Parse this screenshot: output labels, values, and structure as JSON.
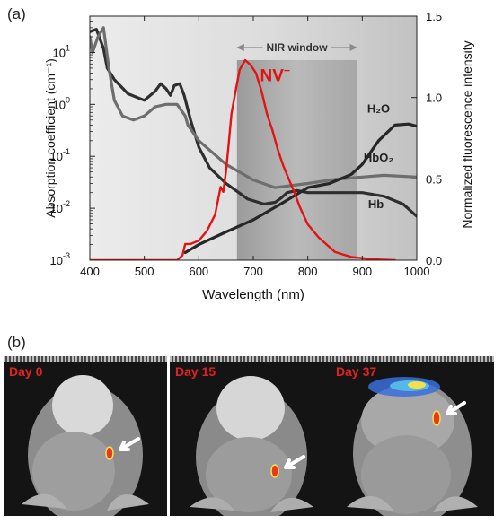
{
  "figure": {
    "panel_a_label": "(a)",
    "panel_b_label": "(b)"
  },
  "chart_data": {
    "type": "line",
    "xlabel": "Wavelength (nm)",
    "ylabel_left": "Absorption coefficient (cm⁻¹)",
    "ylabel_right": "Normalized fluorescence intensity",
    "xlim": [
      400,
      1000
    ],
    "ylim_left": [
      0.001,
      50
    ],
    "yscale_left": "log",
    "ylim_right": [
      0.0,
      1.5
    ],
    "x_ticks": [
      "400",
      "500",
      "600",
      "700",
      "800",
      "900",
      "1000"
    ],
    "y_left_ticks": [
      {
        "mantissa": "10",
        "exponent": "1"
      },
      {
        "mantissa": "10",
        "exponent": "0"
      },
      {
        "mantissa": "10",
        "exponent": "-1"
      },
      {
        "mantissa": "10",
        "exponent": "-2"
      },
      {
        "mantissa": "10",
        "exponent": "-3"
      }
    ],
    "y_right_ticks": [
      "1.5",
      "1.0",
      "0.5",
      "0.0"
    ],
    "band": {
      "label": "NIR window",
      "x": [
        670,
        890
      ]
    },
    "series": [
      {
        "name": "Hb",
        "axis": "left",
        "color": "#2e2e2e",
        "x": [
          400,
          412,
          425,
          432,
          445,
          470,
          500,
          520,
          530,
          540,
          548,
          555,
          565,
          573,
          585,
          600,
          620,
          650,
          690,
          720,
          740,
          752,
          762,
          780,
          800,
          850,
          900,
          940,
          975,
          1000
        ],
        "y": [
          25,
          28,
          12,
          5,
          3,
          1.6,
          1.2,
          1.8,
          2.5,
          2.0,
          1.5,
          2.3,
          2.5,
          1.5,
          0.5,
          0.15,
          0.06,
          0.03,
          0.015,
          0.012,
          0.013,
          0.016,
          0.02,
          0.022,
          0.02,
          0.02,
          0.02,
          0.017,
          0.012,
          0.007
        ]
      },
      {
        "name": "HbO₂",
        "axis": "left",
        "color": "#6e6e6e",
        "x": [
          400,
          405,
          415,
          425,
          435,
          445,
          460,
          480,
          500,
          520,
          540,
          560,
          575,
          580,
          600,
          650,
          700,
          740,
          800,
          850,
          900,
          940,
          1000
        ],
        "y": [
          20,
          10,
          20,
          30,
          5,
          1.2,
          0.6,
          0.5,
          0.6,
          0.9,
          1.0,
          1.0,
          0.6,
          0.4,
          0.2,
          0.07,
          0.035,
          0.025,
          0.03,
          0.036,
          0.04,
          0.043,
          0.04
        ]
      },
      {
        "name": "H₂O",
        "axis": "left",
        "color": "#262626",
        "x": [
          575,
          600,
          650,
          700,
          750,
          800,
          840,
          880,
          900,
          930,
          960,
          985,
          1000
        ],
        "y": [
          0.0014,
          0.002,
          0.0035,
          0.006,
          0.012,
          0.025,
          0.03,
          0.045,
          0.07,
          0.2,
          0.4,
          0.42,
          0.38
        ]
      },
      {
        "name": "NV⁻",
        "axis": "right",
        "color": "#e11414",
        "x": [
          400,
          500,
          560,
          570,
          575,
          585,
          600,
          615,
          630,
          640,
          645,
          650,
          655,
          660,
          668,
          675,
          685,
          695,
          705,
          715,
          725,
          735,
          745,
          755,
          765,
          775,
          785,
          800,
          820,
          850,
          880,
          920,
          960
        ],
        "y": [
          0,
          0,
          0,
          0.03,
          0.1,
          0.1,
          0.12,
          0.18,
          0.28,
          0.45,
          0.42,
          0.55,
          0.72,
          0.9,
          1.05,
          1.17,
          1.23,
          1.2,
          1.15,
          1.04,
          0.9,
          0.8,
          0.68,
          0.58,
          0.5,
          0.42,
          0.33,
          0.22,
          0.14,
          0.05,
          0.02,
          0.005,
          0
        ]
      }
    ],
    "annotations": [
      {
        "text": "NV",
        "sup": "−",
        "series": "NV⁻",
        "x": 740,
        "y_right": 1.1
      },
      {
        "text": "H₂O",
        "series": "H₂O",
        "x": 930,
        "y_left": 0.7
      },
      {
        "text": "HbO₂",
        "series": "HbO₂",
        "x": 930,
        "y_left": 0.08
      },
      {
        "text": "Hb",
        "series": "Hb",
        "x": 925,
        "y_left": 0.01
      }
    ]
  },
  "photos": [
    {
      "label": "Day 0"
    },
    {
      "label": "Day 15"
    },
    {
      "label": "Day 37"
    }
  ]
}
